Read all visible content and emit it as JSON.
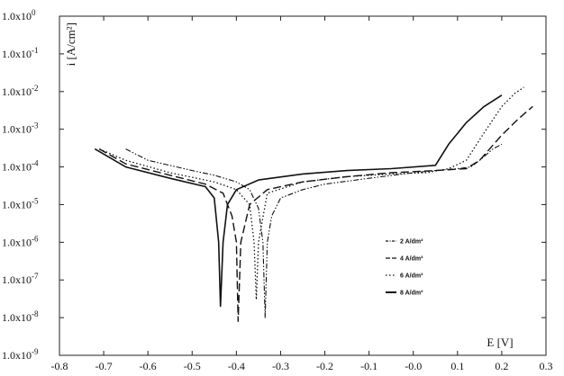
{
  "chart_data": {
    "type": "line",
    "xlabel": "E [V]",
    "ylabel": "i [A/cm²]",
    "x_scale": "linear",
    "y_scale": "log",
    "xlim": [
      -0.8,
      0.3
    ],
    "ylim": [
      1e-09,
      1
    ],
    "x_ticks": [
      "-0.8",
      "-0.7",
      "-0.6",
      "-0.5",
      "-0.4",
      "-0.3",
      "-0.2",
      "-0.1",
      "-0.0",
      "0.1",
      "0.2",
      "0.3"
    ],
    "y_ticks": [
      "1.0x10",
      "1.0x10",
      "1.0x10",
      "1.0x10",
      "1.0x10",
      "1.0x10",
      "1.0x10",
      "1.0x10",
      "1.0x10",
      "1.0x10"
    ],
    "y_tick_exponents": [
      "-9",
      "-8",
      "-7",
      "-6",
      "-5",
      "-4",
      "-3",
      "-2",
      "-1",
      "0"
    ],
    "legend_position": "lower-right-inside",
    "grid": false,
    "series": [
      {
        "name": "2 A/dm²",
        "dash": "dash-dot-dot",
        "x": [
          -0.65,
          -0.6,
          -0.5,
          -0.45,
          -0.4,
          -0.37,
          -0.35,
          -0.34,
          -0.335,
          -0.33,
          -0.32,
          -0.3,
          -0.25,
          -0.2,
          -0.1,
          0.0,
          0.05,
          0.1,
          0.13,
          0.15,
          0.18,
          0.2
        ],
        "y": [
          0.0003,
          0.00015,
          8e-05,
          6e-05,
          4e-05,
          2.5e-05,
          8e-06,
          1e-06,
          1e-08,
          1e-06,
          5e-06,
          1.5e-05,
          2.5e-05,
          3.5e-05,
          5e-05,
          7e-05,
          8e-05,
          9e-05,
          0.0001,
          0.00015,
          0.0003,
          0.0004
        ]
      },
      {
        "name": "4 A/dm²",
        "dash": "long-dash",
        "x": [
          -0.71,
          -0.65,
          -0.55,
          -0.47,
          -0.43,
          -0.41,
          -0.4,
          -0.396,
          -0.39,
          -0.37,
          -0.33,
          -0.25,
          -0.15,
          -0.05,
          0.05,
          0.12,
          0.15,
          0.2,
          0.24,
          0.27
        ],
        "y": [
          0.0003,
          0.00012,
          6e-05,
          3.5e-05,
          2e-05,
          5e-06,
          1e-06,
          8e-09,
          1e-06,
          1e-05,
          2.5e-05,
          4e-05,
          5.5e-05,
          7e-05,
          8e-05,
          9e-05,
          0.00015,
          0.0007,
          0.002,
          0.004
        ]
      },
      {
        "name": "6 A/dm²",
        "dash": "dotted",
        "x": [
          -0.71,
          -0.65,
          -0.55,
          -0.45,
          -0.4,
          -0.37,
          -0.36,
          -0.355,
          -0.35,
          -0.33,
          -0.25,
          -0.15,
          -0.05,
          0.03,
          0.08,
          0.12,
          0.16,
          0.2,
          0.23,
          0.25
        ],
        "y": [
          0.0003,
          0.00015,
          7e-05,
          4e-05,
          2.5e-05,
          1e-05,
          1e-06,
          3e-08,
          1e-06,
          2e-05,
          4e-05,
          5.5e-05,
          6.5e-05,
          7e-05,
          9e-05,
          0.00015,
          0.0008,
          0.004,
          0.009,
          0.013
        ]
      },
      {
        "name": "8 A/dm²",
        "dash": "solid",
        "x": [
          -0.72,
          -0.65,
          -0.55,
          -0.47,
          -0.45,
          -0.44,
          -0.436,
          -0.43,
          -0.42,
          -0.4,
          -0.35,
          -0.25,
          -0.15,
          -0.05,
          0.05,
          0.08,
          0.12,
          0.16,
          0.2
        ],
        "y": [
          0.0003,
          0.0001,
          5e-05,
          3e-05,
          1.5e-05,
          1e-06,
          2e-08,
          1e-06,
          1e-05,
          2.5e-05,
          4.5e-05,
          6.5e-05,
          8e-05,
          9e-05,
          0.00011,
          0.0004,
          0.0015,
          0.004,
          0.008
        ]
      }
    ]
  }
}
